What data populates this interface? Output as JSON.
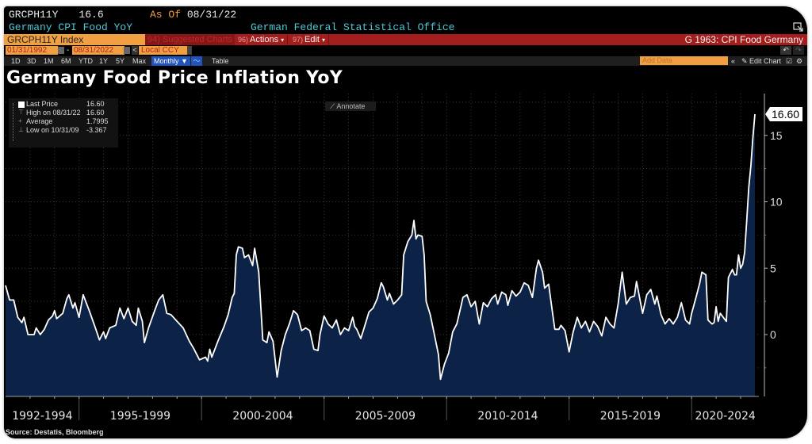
{
  "header": {
    "ticker": "GRCPH11Y",
    "last_value": "16.6",
    "as_of_label": "As Of",
    "as_of_date": "08/31/22",
    "description": "Germany CPI Food YoY",
    "source_org": "German Federal Statistical Office"
  },
  "toolbar": {
    "security": "GRCPH11Y Index",
    "suggested_charts": "94) Suggested Charts",
    "actions_num": "96)",
    "actions_label": "Actions",
    "edit_num": "97)",
    "edit_label": "Edit",
    "graph_title": "G 1963: CPI Food Germany",
    "start_date": "01/31/1992",
    "date_sep": "-",
    "end_date": "08/31/2022",
    "prev": "<",
    "next": ">",
    "currency": "Local CCY",
    "periods": [
      "1D",
      "3D",
      "1M",
      "6M",
      "YTD",
      "1Y",
      "5Y",
      "Max"
    ],
    "frequency": "Monthly ▼",
    "chart_type_icon": "line-chart-icon",
    "table_label": "Table",
    "add_data_placeholder": "Add Data",
    "collapse": "«",
    "edit_chart": "✎ Edit Chart",
    "undo": "↶",
    "redo": "↷"
  },
  "legend": {
    "items": [
      {
        "label": "Last Price",
        "value": "16.60"
      },
      {
        "label": "High on 08/31/22",
        "value": "16.60"
      },
      {
        "label": "Average",
        "value": "1.7995"
      },
      {
        "label": "Low on 10/31/09",
        "value": "-3.367"
      }
    ]
  },
  "annotate_label": "Annotate",
  "last_value_tag": "16.60",
  "source_note": "Source: Destatis, Bloomberg",
  "colors": {
    "line": "#ffffff",
    "area": "#0c2347",
    "background": "#000000",
    "accent_orange": "#f0a040",
    "accent_red": "#a31d1d"
  },
  "chart_data": {
    "type": "area",
    "title": "Germany Food Price Inflation YoY",
    "xlabel": "",
    "ylabel": "",
    "ylim": [
      -4.8,
      17.5
    ],
    "yticks": [
      0,
      5,
      10,
      15
    ],
    "grid": true,
    "xlim": [
      "1992-01",
      "2022-08"
    ],
    "x_period_labels": [
      "1992-1994",
      "1995-1999",
      "2000-2004",
      "2005-2009",
      "2010-2014",
      "2015-2019",
      "2020-2024"
    ],
    "series": [
      {
        "name": "GRCPH11Y Index (Last Price)",
        "frequency": "monthly",
        "points": [
          [
            "1992-01",
            3.7
          ],
          [
            "1992-03",
            2.6
          ],
          [
            "1992-05",
            2.6
          ],
          [
            "1992-07",
            1.3
          ],
          [
            "1992-09",
            0.9
          ],
          [
            "1992-10",
            1.3
          ],
          [
            "1992-12",
            0.0
          ],
          [
            "1993-03",
            0.0
          ],
          [
            "1993-04",
            0.5
          ],
          [
            "1993-06",
            0.0
          ],
          [
            "1993-08",
            0.4
          ],
          [
            "1993-10",
            1.1
          ],
          [
            "1993-12",
            1.4
          ],
          [
            "1994-01",
            1.8
          ],
          [
            "1994-02",
            1.2
          ],
          [
            "1994-05",
            1.6
          ],
          [
            "1994-07",
            2.7
          ],
          [
            "1994-08",
            3.0
          ],
          [
            "1994-10",
            2.0
          ],
          [
            "1994-11",
            2.4
          ],
          [
            "1995-01",
            1.3
          ],
          [
            "1995-03",
            3.0
          ],
          [
            "1995-06",
            1.8
          ],
          [
            "1995-09",
            0.5
          ],
          [
            "1995-11",
            -0.4
          ],
          [
            "1996-01",
            0.2
          ],
          [
            "1996-02",
            -0.3
          ],
          [
            "1996-04",
            0.5
          ],
          [
            "1996-07",
            0.7
          ],
          [
            "1996-09",
            2.0
          ],
          [
            "1996-11",
            1.2
          ],
          [
            "1997-01",
            2.0
          ],
          [
            "1997-03",
            1.0
          ],
          [
            "1997-05",
            0.7
          ],
          [
            "1997-06",
            2.0
          ],
          [
            "1997-08",
            1.0
          ],
          [
            "1997-09",
            -0.6
          ],
          [
            "1997-11",
            0.5
          ],
          [
            "1998-02",
            1.8
          ],
          [
            "1998-04",
            2.6
          ],
          [
            "1998-06",
            3.0
          ],
          [
            "1998-08",
            1.6
          ],
          [
            "1998-10",
            1.5
          ],
          [
            "1999-01",
            1.0
          ],
          [
            "1999-04",
            0.5
          ],
          [
            "1999-07",
            -0.5
          ],
          [
            "1999-09",
            -1.0
          ],
          [
            "1999-12",
            -1.9
          ],
          [
            "2000-03",
            -1.7
          ],
          [
            "2000-04",
            -2.0
          ],
          [
            "2000-05",
            -1.1
          ],
          [
            "2000-06",
            -1.7
          ],
          [
            "2000-09",
            -0.5
          ],
          [
            "2000-12",
            0.6
          ],
          [
            "2001-02",
            1.5
          ],
          [
            "2001-04",
            2.8
          ],
          [
            "2001-05",
            3.1
          ],
          [
            "2001-06",
            6.0
          ],
          [
            "2001-07",
            6.6
          ],
          [
            "2001-09",
            6.5
          ],
          [
            "2001-10",
            5.8
          ],
          [
            "2001-12",
            6.0
          ],
          [
            "2002-02",
            5.2
          ],
          [
            "2002-03",
            6.5
          ],
          [
            "2002-05",
            4.7
          ],
          [
            "2002-07",
            -0.4
          ],
          [
            "2002-09",
            -0.6
          ],
          [
            "2002-10",
            0.2
          ],
          [
            "2002-12",
            -0.5
          ],
          [
            "2003-02",
            -3.2
          ],
          [
            "2003-04",
            -1.2
          ],
          [
            "2003-06",
            0.0
          ],
          [
            "2003-08",
            0.8
          ],
          [
            "2003-10",
            1.8
          ],
          [
            "2003-12",
            1.5
          ],
          [
            "2004-02",
            0.3
          ],
          [
            "2004-04",
            0.5
          ],
          [
            "2004-06",
            0.3
          ],
          [
            "2004-08",
            -1.1
          ],
          [
            "2004-10",
            -1.2
          ],
          [
            "2004-11",
            0.0
          ],
          [
            "2005-01",
            1.4
          ],
          [
            "2005-03",
            0.8
          ],
          [
            "2005-05",
            0.5
          ],
          [
            "2005-07",
            1.1
          ],
          [
            "2005-09",
            0.0
          ],
          [
            "2005-11",
            0.5
          ],
          [
            "2006-01",
            0.3
          ],
          [
            "2006-03",
            1.3
          ],
          [
            "2006-04",
            0.6
          ],
          [
            "2006-05",
            0.4
          ],
          [
            "2006-07",
            -0.3
          ],
          [
            "2006-09",
            0.7
          ],
          [
            "2006-11",
            1.7
          ],
          [
            "2007-01",
            2.0
          ],
          [
            "2007-03",
            2.7
          ],
          [
            "2007-05",
            3.9
          ],
          [
            "2007-06",
            3.6
          ],
          [
            "2007-08",
            2.6
          ],
          [
            "2007-09",
            3.1
          ],
          [
            "2007-11",
            2.3
          ],
          [
            "2008-01",
            2.6
          ],
          [
            "2008-03",
            3.0
          ],
          [
            "2008-04",
            6.0
          ],
          [
            "2008-06",
            7.0
          ],
          [
            "2008-08",
            7.5
          ],
          [
            "2008-09",
            8.6
          ],
          [
            "2008-10",
            7.2
          ],
          [
            "2008-11",
            7.5
          ],
          [
            "2009-01",
            7.4
          ],
          [
            "2009-02",
            6.0
          ],
          [
            "2009-03",
            2.5
          ],
          [
            "2009-05",
            1.5
          ],
          [
            "2009-07",
            0.0
          ],
          [
            "2009-09",
            -1.5
          ],
          [
            "2009-10",
            -3.367
          ],
          [
            "2009-12",
            -2.2
          ],
          [
            "2010-02",
            -1.4
          ],
          [
            "2010-04",
            0.2
          ],
          [
            "2010-06",
            0.8
          ],
          [
            "2010-08",
            2.1
          ],
          [
            "2010-09",
            2.8
          ],
          [
            "2010-11",
            3.0
          ],
          [
            "2011-01",
            2.1
          ],
          [
            "2011-03",
            2.5
          ],
          [
            "2011-05",
            0.8
          ],
          [
            "2011-07",
            2.4
          ],
          [
            "2011-09",
            2.1
          ],
          [
            "2011-11",
            2.7
          ],
          [
            "2012-01",
            3.0
          ],
          [
            "2012-02",
            2.3
          ],
          [
            "2012-04",
            3.2
          ],
          [
            "2012-06",
            3.0
          ],
          [
            "2012-07",
            2.2
          ],
          [
            "2012-09",
            3.3
          ],
          [
            "2012-11",
            2.9
          ],
          [
            "2013-01",
            3.2
          ],
          [
            "2013-03",
            3.9
          ],
          [
            "2013-05",
            3.7
          ],
          [
            "2013-07",
            2.8
          ],
          [
            "2013-09",
            5.0
          ],
          [
            "2013-10",
            5.6
          ],
          [
            "2013-12",
            4.7
          ],
          [
            "2014-01",
            3.5
          ],
          [
            "2014-03",
            3.8
          ],
          [
            "2014-05",
            1.5
          ],
          [
            "2014-06",
            0.4
          ],
          [
            "2014-08",
            0.4
          ],
          [
            "2014-09",
            0.7
          ],
          [
            "2014-11",
            0.3
          ],
          [
            "2015-01",
            -1.3
          ],
          [
            "2015-03",
            0.2
          ],
          [
            "2015-05",
            1.3
          ],
          [
            "2015-07",
            0.5
          ],
          [
            "2015-09",
            1.0
          ],
          [
            "2015-11",
            0.2
          ],
          [
            "2016-01",
            1.0
          ],
          [
            "2016-03",
            0.6
          ],
          [
            "2016-05",
            -0.1
          ],
          [
            "2016-07",
            1.3
          ],
          [
            "2016-09",
            0.8
          ],
          [
            "2016-11",
            0.5
          ],
          [
            "2017-01",
            2.3
          ],
          [
            "2017-03",
            4.7
          ],
          [
            "2017-05",
            2.3
          ],
          [
            "2017-07",
            2.8
          ],
          [
            "2017-09",
            2.9
          ],
          [
            "2017-10",
            4.0
          ],
          [
            "2017-12",
            2.4
          ],
          [
            "2018-01",
            1.6
          ],
          [
            "2018-03",
            3.0
          ],
          [
            "2018-05",
            3.4
          ],
          [
            "2018-07",
            2.3
          ],
          [
            "2018-08",
            2.9
          ],
          [
            "2018-10",
            1.5
          ],
          [
            "2018-12",
            0.8
          ],
          [
            "2019-02",
            1.2
          ],
          [
            "2019-04",
            0.8
          ],
          [
            "2019-06",
            1.3
          ],
          [
            "2019-08",
            2.4
          ],
          [
            "2019-10",
            1.1
          ],
          [
            "2019-12",
            0.8
          ],
          [
            "2020-01",
            1.6
          ],
          [
            "2020-03",
            2.7
          ],
          [
            "2020-05",
            3.9
          ],
          [
            "2020-06",
            4.7
          ],
          [
            "2020-08",
            4.5
          ],
          [
            "2020-09",
            1.1
          ],
          [
            "2020-11",
            0.8
          ],
          [
            "2020-12",
            0.9
          ],
          [
            "2021-01",
            2.1
          ],
          [
            "2021-02",
            1.0
          ],
          [
            "2021-03",
            1.6
          ],
          [
            "2021-05",
            1.2
          ],
          [
            "2021-06",
            1.0
          ],
          [
            "2021-07",
            4.3
          ],
          [
            "2021-08",
            4.6
          ],
          [
            "2021-09",
            4.9
          ],
          [
            "2021-10",
            4.5
          ],
          [
            "2021-11",
            4.5
          ],
          [
            "2021-12",
            6.0
          ],
          [
            "2022-01",
            5.0
          ],
          [
            "2022-02",
            5.3
          ],
          [
            "2022-03",
            6.2
          ],
          [
            "2022-04",
            8.6
          ],
          [
            "2022-05",
            11.1
          ],
          [
            "2022-06",
            12.7
          ],
          [
            "2022-07",
            14.8
          ],
          [
            "2022-08",
            16.6
          ]
        ]
      }
    ],
    "last_value": 16.6,
    "high": {
      "date": "08/31/22",
      "value": 16.6
    },
    "average": 1.7995,
    "low": {
      "date": "10/31/09",
      "value": -3.367
    }
  }
}
